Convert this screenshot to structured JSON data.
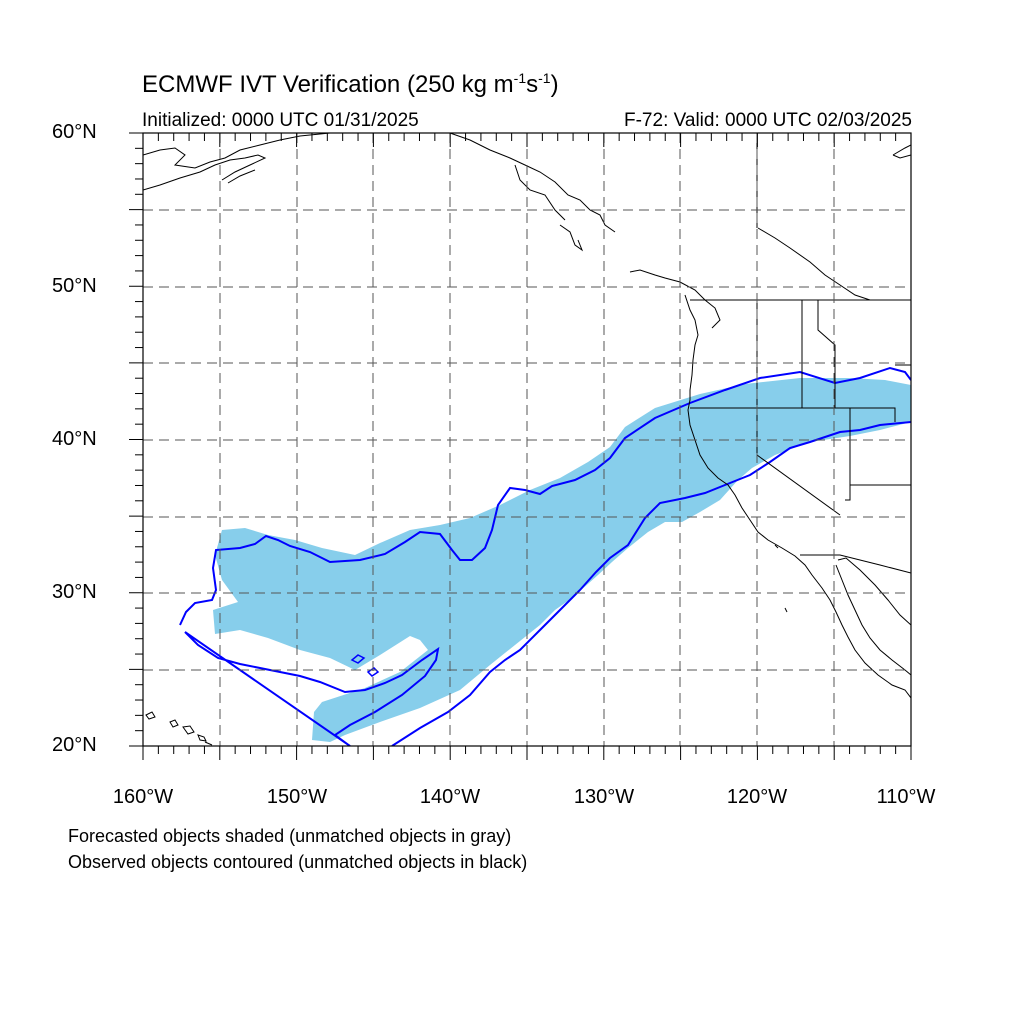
{
  "title_main": "ECMWF IVT Verification (250 kg m",
  "title_exp1": "-1",
  "title_mid": "s",
  "title_exp2": "-1",
  "title_end": ")",
  "init_text": "Initialized: 0000 UTC 01/31/2025",
  "valid_text": "F-72: Valid: 0000 UTC 02/03/2025",
  "lat_labels": [
    "60°N",
    "50°N",
    "40°N",
    "30°N",
    "20°N"
  ],
  "lon_labels": [
    "160°W",
    "150°W",
    "140°W",
    "130°W",
    "120°W",
    "110°W"
  ],
  "note_forecast": "Forecasted objects shaded (unmatched objects in gray)",
  "note_observed": "Observed objects contoured (unmatched objects in black)",
  "colors": {
    "forecast_fill": "#87ceeb",
    "observed_contour": "#0000ff",
    "coastline": "#000000",
    "grid": "#555555"
  },
  "map_extent": {
    "lon": [
      -160,
      -110
    ],
    "lat": [
      20,
      60
    ]
  }
}
